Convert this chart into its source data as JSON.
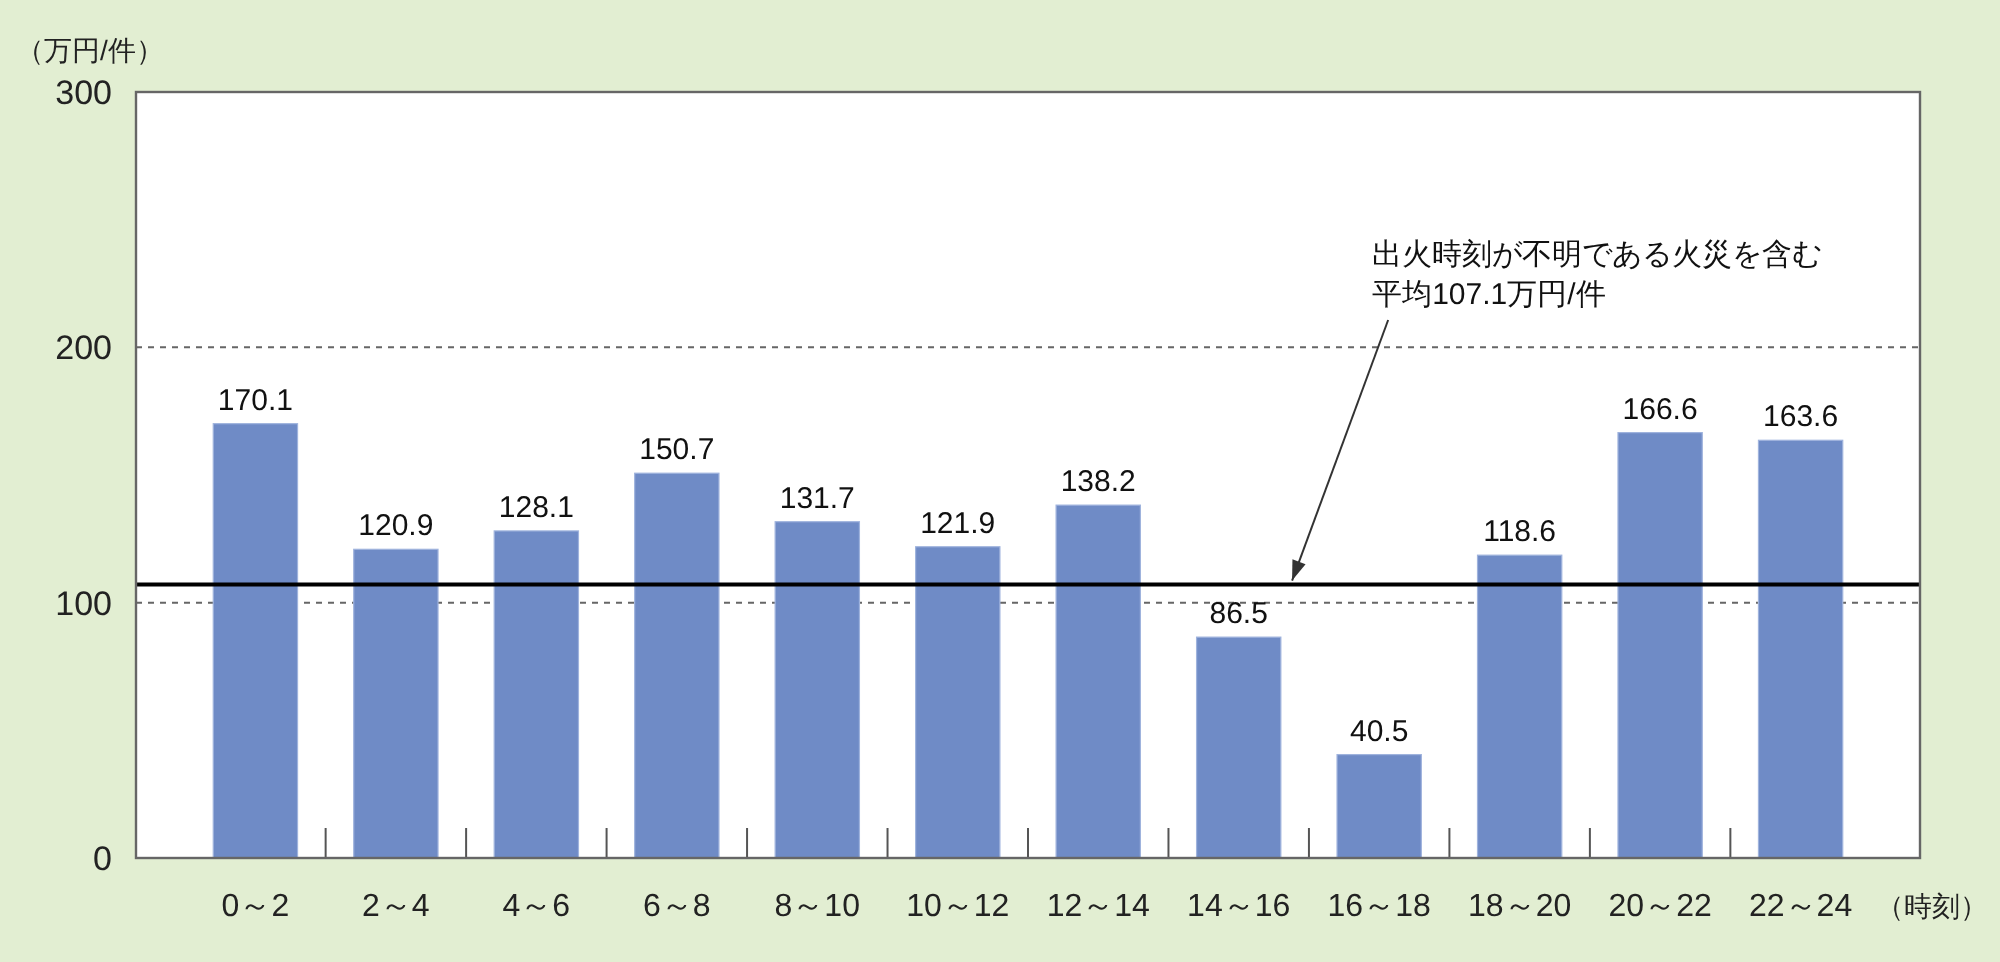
{
  "chart_data": {
    "type": "bar",
    "ylabel": "（万円/件）",
    "xlabel": "（時刻）",
    "categories": [
      "0～2",
      "2～4",
      "4～6",
      "6～8",
      "8～10",
      "10～12",
      "12～14",
      "14～16",
      "16～18",
      "18～20",
      "20～22",
      "22～24"
    ],
    "values": [
      170.1,
      120.9,
      128.1,
      150.7,
      131.7,
      121.9,
      138.2,
      86.5,
      40.5,
      118.6,
      166.6,
      163.6
    ],
    "color": "#6f8bc6",
    "ylim": [
      0,
      300
    ],
    "yticks": [
      0,
      100,
      200,
      300
    ],
    "grid": "y",
    "data_labels": true,
    "ref_lines": [
      {
        "axis": "y",
        "value": 107.1,
        "label": "出火時刻が不明である火災を含む平均107.1万円/件",
        "color": "#000000",
        "line_style": "solid"
      }
    ]
  }
}
